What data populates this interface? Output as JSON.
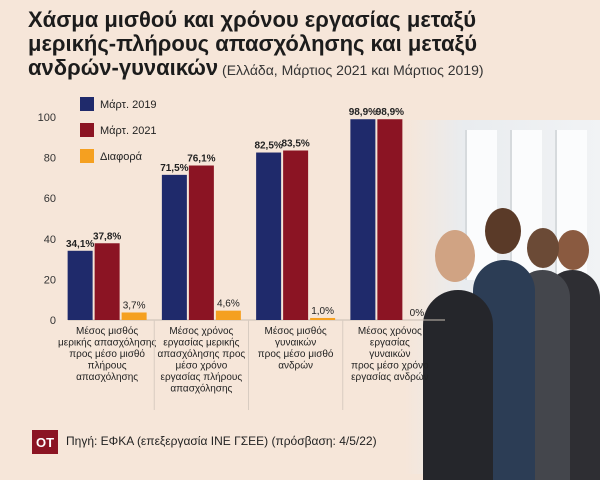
{
  "title": {
    "line1": "Χάσμα μισθού και χρόνου εργασίας μεταξύ",
    "line2": "μερικής-πλήρους απασχόλησης και μεταξύ",
    "line3_bold": "ανδρών-γυναικών",
    "line3_sub": " (Ελλάδα, Μάρτιος 2021 και Μάρτιος 2019)"
  },
  "chart_data": {
    "type": "bar",
    "ylim": [
      0,
      100
    ],
    "yticks": [
      "0",
      "20",
      "40",
      "60",
      "80",
      "100"
    ],
    "legend_position": "top-left",
    "grid": false,
    "categories": [
      [
        "Μέσος μισθός",
        "μερικής απασχόλησης",
        "προς μέσο μισθό",
        "πλήρους",
        "απασχόλησης"
      ],
      [
        "Μέσος χρόνος",
        "εργασίας μερικής",
        "απασχόλησης προς",
        "μέσο χρόνο",
        "εργασίας πλήρους",
        "απασχόλησης"
      ],
      [
        "Μέσος μισθός",
        "γυναικών",
        "προς μέσο μισθό",
        "ανδρών"
      ],
      [
        "Μέσος χρόνος",
        "εργασίας",
        "γυναικών",
        "προς μέσο χρόνο",
        "εργασίας ανδρών"
      ]
    ],
    "series": [
      {
        "name": "Μάρτ. 2019",
        "color": "#1f2a6b",
        "values": [
          34.1,
          71.5,
          82.5,
          98.9
        ],
        "labels": [
          "34,1%",
          "71,5%",
          "82,5%",
          "98,9%"
        ]
      },
      {
        "name": "Μάρτ. 2021",
        "color": "#8b1423",
        "values": [
          37.8,
          76.1,
          83.5,
          98.9
        ],
        "labels": [
          "37,8%",
          "76,1%",
          "83,5%",
          "98,9%"
        ]
      },
      {
        "name": "Διαφορά",
        "color": "#f5a020",
        "values": [
          3.7,
          4.6,
          1.0,
          0
        ],
        "labels": [
          "3,7%",
          "4,6%",
          "1,0%",
          "0%"
        ]
      }
    ]
  },
  "footer": {
    "logo": "OT",
    "source": "Πηγή: ΕΦΚΑ (επεξεργασία ΙΝΕ ΓΣΕΕ) (πρόσβαση: 4/5/22)"
  }
}
